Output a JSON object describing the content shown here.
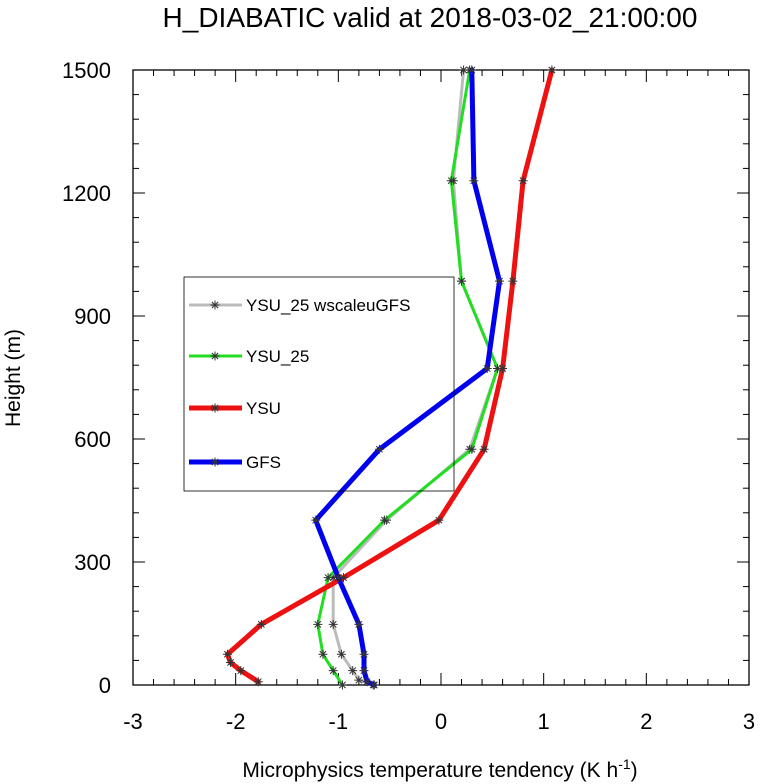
{
  "chart_data": {
    "type": "line",
    "title": "H_DIABATIC valid at 2018-03-02_21:00:00",
    "xlabel": "Microphysics temperature tendency (K h",
    "xlabel_sup": "-1",
    "xlabel_end": ")",
    "ylabel": "Height (m)",
    "xlim": [
      -3,
      3
    ],
    "ylim": [
      0,
      1500
    ],
    "xticks": [
      -3,
      -2,
      -1,
      0,
      1,
      2,
      3
    ],
    "yticks": [
      0,
      300,
      600,
      900,
      1200,
      1500
    ],
    "legend_position": "left-middle",
    "series": [
      {
        "name": "YSU_25 wscaleuGFS",
        "color": "#bbbbbb",
        "points": [
          [
            -0.66,
            0
          ],
          [
            -0.8,
            12
          ],
          [
            -0.86,
            35
          ],
          [
            -0.97,
            75
          ],
          [
            -1.05,
            148
          ],
          [
            -1.05,
            262
          ],
          [
            -0.53,
            402
          ],
          [
            0.28,
            575
          ],
          [
            0.55,
            772
          ],
          [
            0.2,
            985
          ],
          [
            0.12,
            1230
          ],
          [
            0.22,
            1500
          ]
        ]
      },
      {
        "name": "YSU_25",
        "color": "#22dd22",
        "points": [
          [
            -0.96,
            0
          ],
          [
            -1.05,
            35
          ],
          [
            -1.15,
            75
          ],
          [
            -1.2,
            148
          ],
          [
            -1.1,
            262
          ],
          [
            -0.55,
            402
          ],
          [
            0.3,
            575
          ],
          [
            0.55,
            772
          ],
          [
            0.2,
            985
          ],
          [
            0.1,
            1230
          ],
          [
            0.28,
            1500
          ]
        ]
      },
      {
        "name": "YSU",
        "color": "#ee1111",
        "points": [
          [
            -1.78,
            8
          ],
          [
            -1.95,
            35
          ],
          [
            -2.05,
            55
          ],
          [
            -2.08,
            75
          ],
          [
            -1.75,
            148
          ],
          [
            -0.95,
            262
          ],
          [
            -0.02,
            402
          ],
          [
            0.42,
            575
          ],
          [
            0.6,
            772
          ],
          [
            0.7,
            985
          ],
          [
            0.8,
            1230
          ],
          [
            1.08,
            1500
          ]
        ]
      },
      {
        "name": "GFS",
        "color": "#0000ee",
        "points": [
          [
            -0.65,
            0
          ],
          [
            -0.72,
            8
          ],
          [
            -0.75,
            35
          ],
          [
            -0.75,
            75
          ],
          [
            -0.8,
            148
          ],
          [
            -1.0,
            262
          ],
          [
            -1.22,
            402
          ],
          [
            -0.6,
            575
          ],
          [
            0.45,
            772
          ],
          [
            0.57,
            985
          ],
          [
            0.32,
            1230
          ],
          [
            0.3,
            1500
          ]
        ]
      }
    ]
  }
}
